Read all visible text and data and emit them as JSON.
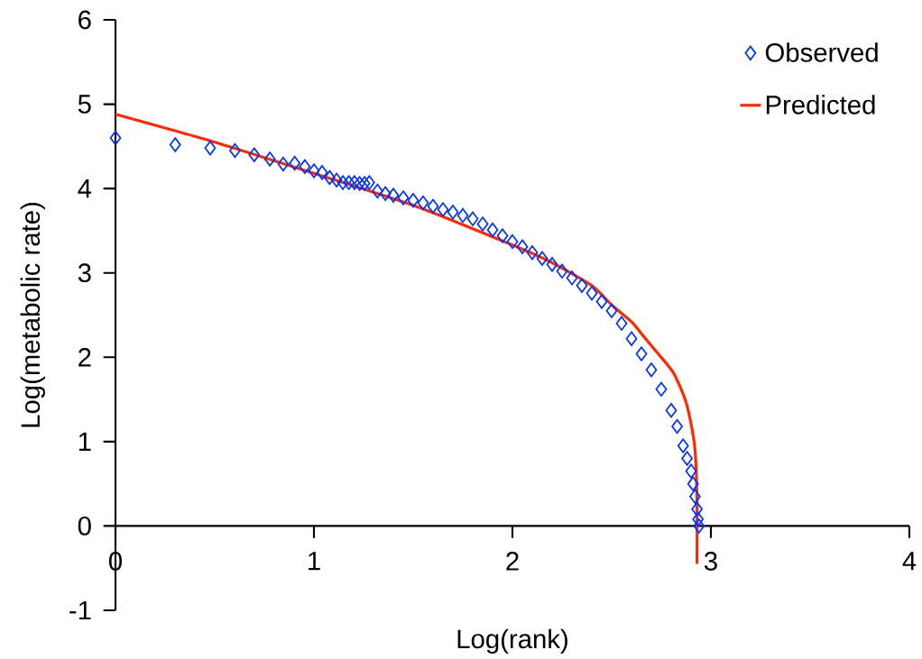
{
  "chart_data": {
    "type": "scatter",
    "xlabel": "Log(rank)",
    "ylabel": "Log(metabolic rate)",
    "xlim": [
      0,
      4
    ],
    "ylim": [
      -1,
      6
    ],
    "xticks": [
      0,
      1,
      2,
      3,
      4
    ],
    "yticks": [
      -1,
      0,
      1,
      2,
      3,
      4,
      5,
      6
    ],
    "grid": false,
    "legend": "top right",
    "series": [
      {
        "name": "Observed",
        "marker": "diamond",
        "color": "#0033ff",
        "x": [
          0,
          0.301,
          0.477,
          0.602,
          0.699,
          0.778,
          0.845,
          0.903,
          0.954,
          1.0,
          1.041,
          1.079,
          1.114,
          1.146,
          1.176,
          1.204,
          1.23,
          1.255,
          1.279,
          1.32,
          1.36,
          1.4,
          1.45,
          1.5,
          1.55,
          1.6,
          1.65,
          1.7,
          1.75,
          1.8,
          1.85,
          1.9,
          1.95,
          2.0,
          2.05,
          2.1,
          2.15,
          2.2,
          2.25,
          2.3,
          2.35,
          2.4,
          2.45,
          2.5,
          2.55,
          2.6,
          2.65,
          2.7,
          2.75,
          2.8,
          2.83,
          2.86,
          2.88,
          2.9,
          2.91,
          2.92,
          2.93,
          2.935,
          2.94
        ],
        "values": [
          4.6,
          4.52,
          4.48,
          4.45,
          4.4,
          4.35,
          4.29,
          4.3,
          4.26,
          4.21,
          4.19,
          4.13,
          4.1,
          4.07,
          4.07,
          4.07,
          4.06,
          4.06,
          4.07,
          3.97,
          3.94,
          3.92,
          3.89,
          3.86,
          3.83,
          3.79,
          3.75,
          3.72,
          3.68,
          3.64,
          3.58,
          3.51,
          3.44,
          3.37,
          3.31,
          3.24,
          3.17,
          3.1,
          3.02,
          2.94,
          2.85,
          2.76,
          2.66,
          2.55,
          2.4,
          2.22,
          2.04,
          1.85,
          1.62,
          1.37,
          1.18,
          0.95,
          0.8,
          0.65,
          0.5,
          0.35,
          0.2,
          0.08,
          0
        ]
      },
      {
        "name": "Predicted",
        "type": "line",
        "marker": "none",
        "color": "#ff2a00",
        "x": [
          0,
          0.5,
          1,
          1.5,
          2,
          2.2,
          2.4,
          2.5,
          2.6,
          2.66,
          2.72,
          2.81,
          2.87,
          2.9,
          2.92,
          2.93,
          2.93
        ],
        "values": [
          4.88,
          4.55,
          4.18,
          3.8,
          3.33,
          3.12,
          2.85,
          2.62,
          2.42,
          2.25,
          2.08,
          1.82,
          1.5,
          1.21,
          0.9,
          0.3,
          -0.45
        ]
      }
    ]
  }
}
